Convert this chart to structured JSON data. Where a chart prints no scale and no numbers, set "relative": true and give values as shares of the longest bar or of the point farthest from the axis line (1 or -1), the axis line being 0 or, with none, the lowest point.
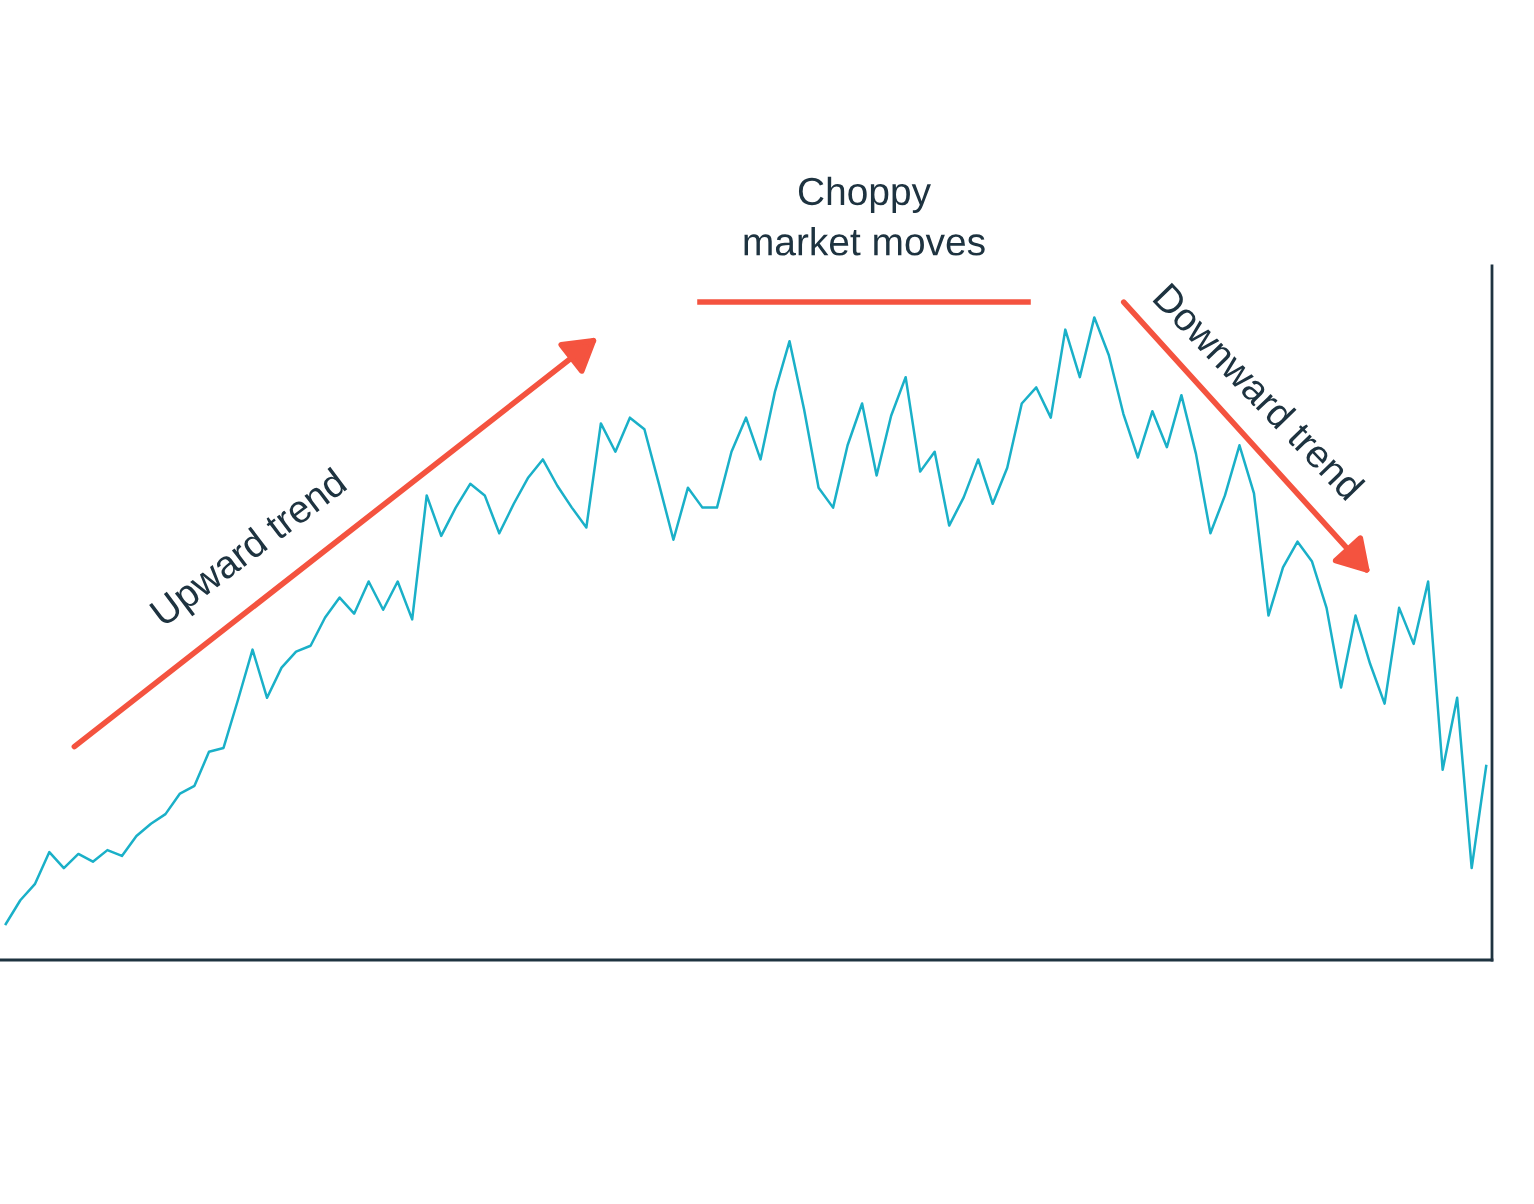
{
  "chart_data": {
    "type": "line",
    "relative": true,
    "marker": "none",
    "line_style": "solid",
    "categories": [
      null,
      null,
      null,
      null,
      null,
      null,
      null,
      null,
      null,
      null,
      null,
      null,
      null,
      null,
      null,
      null,
      null,
      null,
      null,
      null,
      null,
      null,
      null,
      null,
      null,
      null,
      null,
      null,
      null,
      null,
      null,
      null,
      null,
      null,
      null,
      null,
      null,
      null,
      null,
      null,
      null,
      null,
      null,
      null,
      null,
      null,
      null,
      null,
      null,
      null,
      null,
      null,
      null,
      null,
      null,
      null,
      null,
      null,
      null,
      null,
      null,
      null,
      null,
      null,
      null,
      null,
      null,
      null,
      null,
      null,
      null,
      null,
      null,
      null,
      null,
      null,
      null,
      null,
      null,
      null,
      null,
      null,
      null,
      null,
      null,
      null,
      null,
      null,
      null,
      null,
      null,
      null,
      null,
      null,
      null,
      null,
      null,
      null,
      null,
      null,
      null,
      null,
      null
    ],
    "series": [
      {
        "color": "#1ab0c8",
        "values": [
          0.056,
          0.093,
          0.118,
          0.168,
          0.143,
          0.165,
          0.153,
          0.171,
          0.162,
          0.193,
          0.212,
          0.227,
          0.259,
          0.271,
          0.324,
          0.33,
          0.405,
          0.483,
          0.408,
          0.455,
          0.48,
          0.489,
          0.533,
          0.564,
          0.539,
          0.589,
          0.545,
          0.589,
          0.53,
          0.723,
          0.66,
          0.704,
          0.741,
          0.723,
          0.664,
          0.71,
          0.751,
          0.779,
          0.738,
          0.704,
          0.673,
          0.835,
          0.791,
          0.844,
          0.826,
          0.741,
          0.654,
          0.735,
          0.704,
          0.704,
          0.791,
          0.844,
          0.779,
          0.885,
          0.963,
          0.857,
          0.735,
          0.704,
          0.801,
          0.866,
          0.754,
          0.847,
          0.907,
          0.76,
          0.791,
          0.676,
          0.72,
          0.779,
          0.71,
          0.766,
          0.866,
          0.891,
          0.844,
          0.981,
          0.907,
          1,
          0.941,
          0.85,
          0.782,
          0.854,
          0.798,
          0.879,
          0.788,
          0.664,
          0.723,
          0.801,
          0.726,
          0.536,
          0.611,
          0.651,
          0.62,
          0.548,
          0.424,
          0.536,
          0.461,
          0.399,
          0.548,
          0.492,
          0.589,
          0.296,
          0.408,
          0.143,
          0.302
        ]
      }
    ],
    "annotations": [
      "Upward trend",
      "Choppy\nmarket moves",
      "Downward trend"
    ]
  }
}
